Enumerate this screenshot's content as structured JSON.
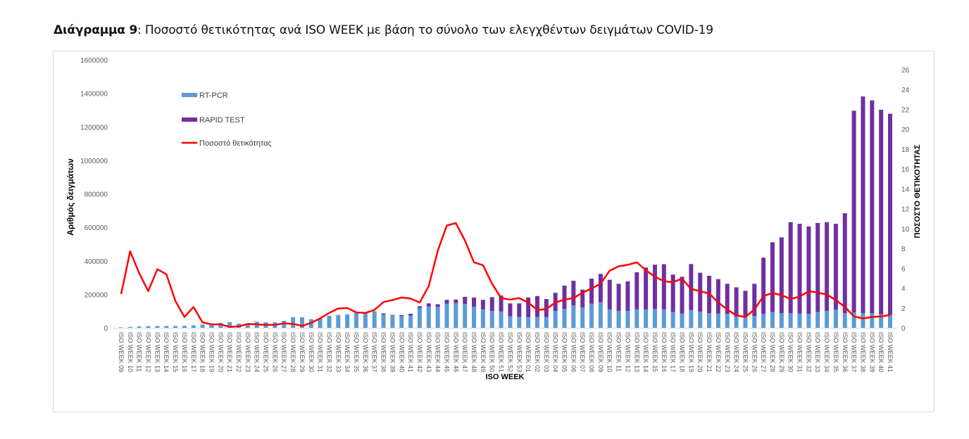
{
  "title": {
    "bold": "Διάγραμμα 9",
    "rest": ": Ποσοστό θετικότητας ανά ISO WEEK με βάση το σύνολο των ελεγχθέντων δειγμάτων COVID-19"
  },
  "chart_data": {
    "type": "bar+line",
    "title": "Διάγραμμα 9: Ποσοστό θετικότητας ανά ISO WEEK με βάση το σύνολο των ελεγχθέντων δειγμάτων COVID-19",
    "xlabel": "ISO WEEK",
    "ylabel": "Αριθμός δειγμάτων",
    "y2label": "ΠΟΣΟΣΤΟ ΘΕΤΙΚΟΤΗΤΑΣ",
    "ylim": [
      0,
      1600000
    ],
    "y2lim": [
      0,
      26
    ],
    "yticks": [
      "0",
      "200000",
      "400000",
      "600000",
      "800000",
      "1000000",
      "1200000",
      "1400000",
      "1600000"
    ],
    "y2ticks": [
      "0",
      "2",
      "4",
      "6",
      "8",
      "10",
      "12",
      "14",
      "16",
      "18",
      "20",
      "22",
      "24",
      "26"
    ],
    "legend_position": "top-left",
    "categories": [
      "ISO WEEK 09",
      "ISO WEEK 10",
      "ISO WEEK 11",
      "ISO WEEK 12",
      "ISO WEEK 13",
      "ISO WEEK 14",
      "ISO WEEK 15",
      "ISO WEEK 16",
      "ISO WEEK 17",
      "ISO WEEK 18",
      "ISO WEEK 19",
      "ISO WEEK 20",
      "ISO WEEK 21",
      "ISO WEEK 22",
      "ISO WEEK 23",
      "ISO WEEK 24",
      "ISO WEEK 25",
      "ISO WEEK 26",
      "ISO WEEK 27",
      "ISO WEEK 28",
      "ISO WEEK 29",
      "ISO WEEK 30",
      "ISO WEEK 31",
      "ISO WEEK 32",
      "ISO WEEK 33",
      "ISO WEEK 34",
      "ISO WEEK 35",
      "ISO WEEK 36",
      "ISO WEEK 37",
      "ISO WEEK 38",
      "ISO WEEK 39",
      "ISO WEEK 40",
      "ISO WEEK 41",
      "ISO WEEK 42",
      "ISO WEEK 43",
      "ISO WEEK 44",
      "ISO WEEK 45",
      "ISO WEEK 46",
      "ISO WEEK 47",
      "ISO WEEK 48",
      "ISO WEEK 49",
      "ISO WEEK 50",
      "ISO WEEK 51",
      "ISO WEEK 52",
      "ISO WEEK 53",
      "ISO WEEK 01",
      "ISO WEEK 02",
      "ISO WEEK 03",
      "ISO WEEK 04",
      "ISO WEEK 05",
      "ISO WEEK 06",
      "ISO WEEK 07",
      "ISO WEEK 08",
      "ISO WEEK 09",
      "ISO WEEK 10",
      "ISO WEEK 11",
      "ISO WEEK 12",
      "ISO WEEK 13",
      "ISO WEEK 14",
      "ISO WEEK 15",
      "ISO WEEK 16",
      "ISO WEEK 17",
      "ISO WEEK 18",
      "ISO WEEK 19",
      "ISO WEEK 20",
      "ISO WEEK 21",
      "ISO WEEK 22",
      "ISO WEEK 23",
      "ISO WEEK 24",
      "ISO WEEK 25",
      "ISO WEEK 26",
      "ISO WEEK 27",
      "ISO WEEK 28",
      "ISO WEEK 29",
      "ISO WEEK 30",
      "ISO WEEK 31",
      "ISO WEEK 32",
      "ISO WEEK 33",
      "ISO WEEK 34",
      "ISO WEEK 35",
      "ISO WEEK 36",
      "ISO WEEK 37",
      "ISO WEEK 38",
      "ISO WEEK 39",
      "ISO WEEK 40",
      "ISO WEEK 41"
    ],
    "series": [
      {
        "name": "RT-PCR",
        "type": "stacked-bar",
        "axis": "left",
        "color": "#5b9bd5",
        "values": [
          3000,
          5000,
          8000,
          10000,
          11000,
          11000,
          11000,
          12000,
          15000,
          20000,
          22000,
          30000,
          34000,
          25000,
          25000,
          37000,
          33000,
          33000,
          42000,
          63000,
          63000,
          52000,
          55000,
          72000,
          77000,
          81000,
          90000,
          90000,
          95000,
          80000,
          76000,
          70000,
          73000,
          119000,
          127000,
          125000,
          144000,
          148000,
          143000,
          125000,
          110000,
          101000,
          97000,
          69000,
          64000,
          64000,
          64000,
          64000,
          101000,
          113000,
          134000,
          122000,
          144000,
          152000,
          110000,
          101000,
          101000,
          110000,
          110000,
          113000,
          110000,
          94000,
          85000,
          106000,
          97000,
          88000,
          85000,
          83000,
          67000,
          62000,
          70000,
          83000,
          94000,
          88000,
          88000,
          85000,
          83000,
          94000,
          101000,
          109000,
          88000,
          91000,
          88000,
          88000,
          80000,
          77000
        ]
      },
      {
        "name": "RAPID TEST",
        "type": "stacked-bar",
        "axis": "left",
        "color": "#7030a0",
        "values": [
          0,
          0,
          0,
          0,
          0,
          0,
          0,
          0,
          0,
          0,
          0,
          0,
          0,
          0,
          0,
          0,
          0,
          0,
          0,
          0,
          0,
          0,
          0,
          0,
          0,
          0,
          0,
          0,
          3000,
          6000,
          2000,
          6000,
          11000,
          10000,
          19000,
          16000,
          23000,
          21000,
          42000,
          56000,
          57000,
          82000,
          96000,
          77000,
          82000,
          117000,
          126000,
          108000,
          108000,
          139000,
          147000,
          106000,
          150000,
          170000,
          177000,
          162000,
          176000,
          222000,
          250000,
          264000,
          270000,
          224000,
          220000,
          275000,
          232000,
          223000,
          206000,
          180000,
          175000,
          159000,
          193000,
          336000,
          417000,
          452000,
          543000,
          536000,
          522000,
          532000,
          530000,
          512000,
          596000,
          1205000,
          1293000,
          1270000,
          1222000,
          1201000
        ]
      },
      {
        "name": "Ποσοστό θετικότητας",
        "type": "line",
        "axis": "right",
        "color": "#ff0000",
        "values": [
          3.4,
          7.7,
          5.5,
          3.7,
          5.9,
          5.4,
          2.7,
          1.1,
          2.1,
          0.55,
          0.35,
          0.35,
          0.1,
          0.15,
          0.4,
          0.35,
          0.3,
          0.3,
          0.45,
          0.4,
          0.2,
          0.5,
          0.95,
          1.5,
          1.95,
          2.0,
          1.55,
          1.5,
          1.8,
          2.6,
          2.8,
          3.05,
          2.95,
          2.55,
          4.2,
          7.75,
          10.3,
          10.55,
          8.8,
          6.6,
          6.3,
          4.45,
          3.0,
          2.85,
          3.0,
          2.55,
          1.8,
          1.9,
          2.55,
          2.85,
          3.0,
          3.55,
          3.95,
          4.45,
          5.75,
          6.2,
          6.35,
          6.6,
          5.8,
          5.15,
          4.7,
          4.6,
          4.95,
          3.9,
          3.7,
          3.45,
          2.55,
          1.85,
          1.25,
          1.1,
          1.85,
          3.2,
          3.5,
          3.3,
          2.9,
          3.15,
          3.7,
          3.55,
          3.35,
          2.8,
          2.1,
          1.15,
          0.95,
          1.1,
          1.15,
          1.3
        ]
      }
    ]
  }
}
